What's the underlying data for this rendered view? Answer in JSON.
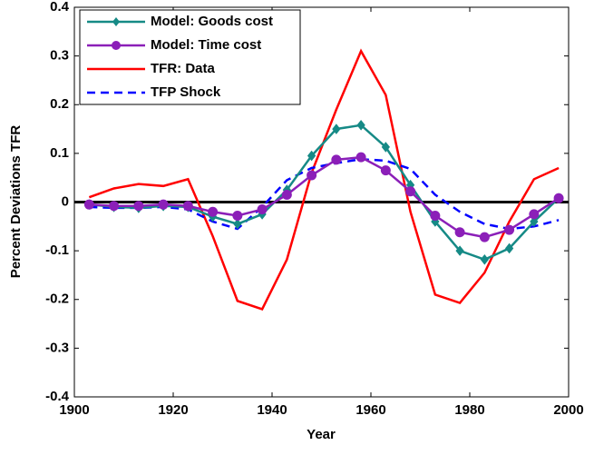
{
  "chart_data": {
    "type": "line",
    "xlabel": "Year",
    "ylabel": "Percent Deviations TFR",
    "x": [
      1903,
      1908,
      1913,
      1918,
      1923,
      1928,
      1933,
      1938,
      1943,
      1948,
      1953,
      1958,
      1963,
      1968,
      1973,
      1978,
      1983,
      1988,
      1993,
      1998
    ],
    "series": [
      {
        "name": "Model: Goods cost",
        "color": "#168a86",
        "marker": "diamond",
        "dash": false,
        "values": [
          -0.005,
          -0.01,
          -0.012,
          -0.008,
          -0.01,
          -0.03,
          -0.045,
          -0.025,
          0.025,
          0.095,
          0.15,
          0.158,
          0.113,
          0.035,
          -0.04,
          -0.1,
          -0.118,
          -0.095,
          -0.04,
          0.008
        ]
      },
      {
        "name": "Model: Time cost",
        "color": "#8b1fb8",
        "marker": "circle",
        "dash": false,
        "values": [
          -0.005,
          -0.008,
          -0.008,
          -0.005,
          -0.008,
          -0.02,
          -0.028,
          -0.015,
          0.015,
          0.055,
          0.087,
          0.092,
          0.065,
          0.022,
          -0.028,
          -0.062,
          -0.072,
          -0.057,
          -0.025,
          0.008
        ]
      },
      {
        "name": "TFR: Data",
        "color": "#ff0000",
        "marker": "none",
        "dash": false,
        "values": [
          0.01,
          0.028,
          0.037,
          0.033,
          0.047,
          -0.07,
          -0.203,
          -0.22,
          -0.118,
          0.06,
          0.19,
          0.31,
          0.22,
          -0.02,
          -0.19,
          -0.207,
          -0.145,
          -0.04,
          0.047,
          0.07
        ]
      },
      {
        "name": "TFP Shock",
        "color": "#0000ff",
        "marker": "none",
        "dash": true,
        "values": [
          -0.01,
          -0.012,
          -0.012,
          -0.01,
          -0.015,
          -0.04,
          -0.055,
          -0.01,
          0.045,
          0.07,
          0.08,
          0.088,
          0.085,
          0.068,
          0.015,
          -0.02,
          -0.045,
          -0.055,
          -0.05,
          -0.037
        ]
      }
    ],
    "xlim": [
      1900,
      2000
    ],
    "xticks": [
      1900,
      1920,
      1940,
      1960,
      1980,
      2000
    ],
    "ylim": [
      -0.4,
      0.4
    ],
    "yticks": [
      -0.4,
      -0.3,
      -0.2,
      -0.1,
      0,
      0.1,
      0.2,
      0.3,
      0.4
    ],
    "hline": 0,
    "grid": false,
    "legend": "upper-left"
  }
}
